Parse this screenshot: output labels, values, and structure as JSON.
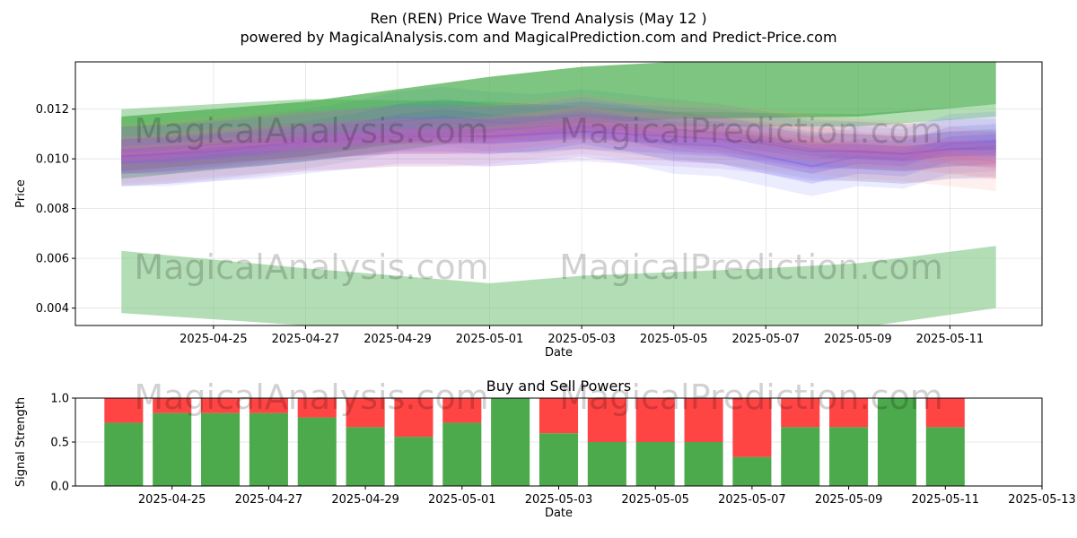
{
  "header": {
    "title": "Ren (REN) Price Wave Trend Analysis (May 12 )",
    "subtitle": "powered by MagicalAnalysis.com and MagicalPrediction.com and Predict-Price.com"
  },
  "watermarks": [
    "MagicalAnalysis.com",
    "MagicalPrediction.com"
  ],
  "colors": {
    "band_green": "#4caf50",
    "band_light_green": "#81c784",
    "wave_blue": "#6666ff",
    "wave_red": "#ff8080",
    "wave_purple": "#9955cc",
    "wave_teal": "#2e8b8b",
    "buy": "#4caa4c",
    "sell": "#ff4444"
  },
  "chart_data": [
    {
      "type": "area",
      "title": "",
      "xlabel": "Date",
      "ylabel": "Price",
      "xlim": [
        "2025-04-22",
        "2025-05-13"
      ],
      "ylim": [
        0.0033,
        0.0139
      ],
      "x_ticks": [
        "2025-04-25",
        "2025-04-27",
        "2025-04-29",
        "2025-05-01",
        "2025-05-03",
        "2025-05-05",
        "2025-05-07",
        "2025-05-09",
        "2025-05-11"
      ],
      "y_ticks": [
        0.004,
        0.006,
        0.008,
        0.01,
        0.012
      ],
      "y_tick_labels": [
        "0.004",
        "0.006",
        "0.008",
        "0.010",
        "0.012"
      ],
      "grid": true,
      "bands": [
        {
          "color": "light_green",
          "x": [
            "2025-04-23",
            "2025-04-27",
            "2025-05-01",
            "2025-05-05",
            "2025-05-09",
            "2025-05-12"
          ],
          "upper": [
            0.012,
            0.0124,
            0.0123,
            0.0119,
            0.0118,
            0.0122
          ],
          "lower": [
            0.0092,
            0.0099,
            0.0108,
            0.0113,
            0.0113,
            0.0117
          ]
        },
        {
          "color": "green",
          "x": [
            "2025-04-23",
            "2025-04-27",
            "2025-05-01",
            "2025-05-03",
            "2025-05-05",
            "2025-05-09",
            "2025-05-12"
          ],
          "upper": [
            0.0117,
            0.0123,
            0.0133,
            0.0137,
            0.0139,
            0.0139,
            0.0139
          ],
          "lower": [
            0.0095,
            0.0101,
            0.0111,
            0.0114,
            0.0116,
            0.0117,
            0.0122
          ]
        },
        {
          "color": "light_green",
          "x": [
            "2025-04-23",
            "2025-04-27",
            "2025-05-01",
            "2025-05-03",
            "2025-05-07",
            "2025-05-09",
            "2025-05-12"
          ],
          "upper": [
            0.0063,
            0.0056,
            0.005,
            0.0053,
            0.0056,
            0.0058,
            0.0065
          ],
          "lower": [
            0.0038,
            0.0033,
            0.0027,
            0.0028,
            0.0029,
            0.0032,
            0.004
          ]
        }
      ],
      "wave_x": [
        "2025-04-23",
        "2025-04-24",
        "2025-04-25",
        "2025-04-26",
        "2025-04-27",
        "2025-04-28",
        "2025-04-29",
        "2025-04-30",
        "2025-05-01",
        "2025-05-02",
        "2025-05-03",
        "2025-05-04",
        "2025-05-05",
        "2025-05-06",
        "2025-05-07",
        "2025-05-08",
        "2025-05-09",
        "2025-05-10",
        "2025-05-11",
        "2025-05-12"
      ],
      "waves": [
        {
          "color": "teal",
          "values": [
            0.0101,
            0.0102,
            0.0104,
            0.0106,
            0.0108,
            0.0111,
            0.0115,
            0.0117,
            0.0115,
            0.0114,
            0.0116,
            0.0114,
            0.0112,
            0.011,
            0.0107,
            0.0104,
            0.0103,
            0.0102,
            0.0104,
            0.0105
          ]
        },
        {
          "color": "blue",
          "values": [
            0.0101,
            0.0101,
            0.0103,
            0.0104,
            0.0106,
            0.0108,
            0.011,
            0.011,
            0.0109,
            0.011,
            0.0113,
            0.011,
            0.0106,
            0.0105,
            0.0101,
            0.0097,
            0.0101,
            0.01,
            0.0106,
            0.0107
          ]
        },
        {
          "color": "red",
          "values": [
            0.0102,
            0.0103,
            0.0105,
            0.0106,
            0.0107,
            0.0108,
            0.0109,
            0.0109,
            0.011,
            0.0112,
            0.0114,
            0.0112,
            0.0111,
            0.011,
            0.0108,
            0.0106,
            0.0104,
            0.0103,
            0.0101,
            0.0099
          ]
        },
        {
          "color": "purple",
          "values": [
            0.0101,
            0.0102,
            0.0103,
            0.0105,
            0.0107,
            0.0108,
            0.0109,
            0.0109,
            0.0109,
            0.011,
            0.0111,
            0.011,
            0.0109,
            0.0108,
            0.0106,
            0.0103,
            0.0103,
            0.0102,
            0.0104,
            0.0104
          ]
        }
      ]
    },
    {
      "type": "bar",
      "title": "Buy and Sell Powers",
      "xlabel": "Date",
      "ylabel": "Signal Strength",
      "xlim": [
        "2025-04-23",
        "2025-05-13"
      ],
      "ylim": [
        0,
        1.0
      ],
      "x_ticks": [
        "2025-04-25",
        "2025-04-27",
        "2025-04-29",
        "2025-05-01",
        "2025-05-03",
        "2025-05-05",
        "2025-05-07",
        "2025-05-09",
        "2025-05-11",
        "2025-05-13"
      ],
      "y_ticks": [
        0.0,
        0.5,
        1.0
      ],
      "y_tick_labels": [
        "0.0",
        "0.5",
        "1.0"
      ],
      "grid": true,
      "categories": [
        "2025-04-24",
        "2025-04-25",
        "2025-04-26",
        "2025-04-27",
        "2025-04-28",
        "2025-04-29",
        "2025-04-30",
        "2025-05-01",
        "2025-05-02",
        "2025-05-03",
        "2025-05-04",
        "2025-05-05",
        "2025-05-06",
        "2025-05-07",
        "2025-05-08",
        "2025-05-09",
        "2025-05-10",
        "2025-05-11"
      ],
      "series": [
        {
          "values": [
            0.72,
            0.83,
            0.83,
            0.83,
            0.78,
            0.67,
            0.56,
            0.72,
            1.0,
            0.6,
            0.5,
            0.5,
            0.5,
            0.33,
            0.67,
            0.67,
            1.0,
            0.67
          ]
        },
        {
          "values": [
            0.28,
            0.17,
            0.17,
            0.17,
            0.22,
            0.33,
            0.44,
            0.28,
            0.0,
            0.4,
            0.5,
            0.5,
            0.5,
            0.67,
            0.33,
            0.33,
            0.0,
            0.33
          ]
        }
      ]
    }
  ]
}
